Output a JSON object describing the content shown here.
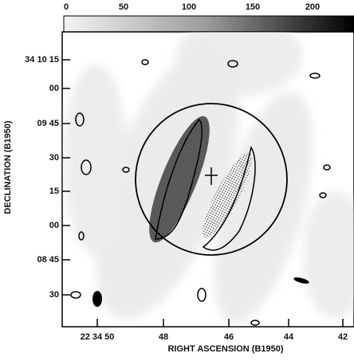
{
  "colorbar": {
    "ticks": [
      "0",
      "50",
      "100",
      "150",
      "200"
    ]
  },
  "y_axis": {
    "label": "DECLINATION (B1950)",
    "ticks": [
      "34 10 15",
      "00",
      "09 45",
      "30",
      "15",
      "00",
      "08 45",
      "30"
    ]
  },
  "x_axis": {
    "label": "RIGHT ASCENSION (B1950)",
    "ticks": [
      "22 34 50",
      "48",
      "46",
      "44",
      "42"
    ]
  }
}
